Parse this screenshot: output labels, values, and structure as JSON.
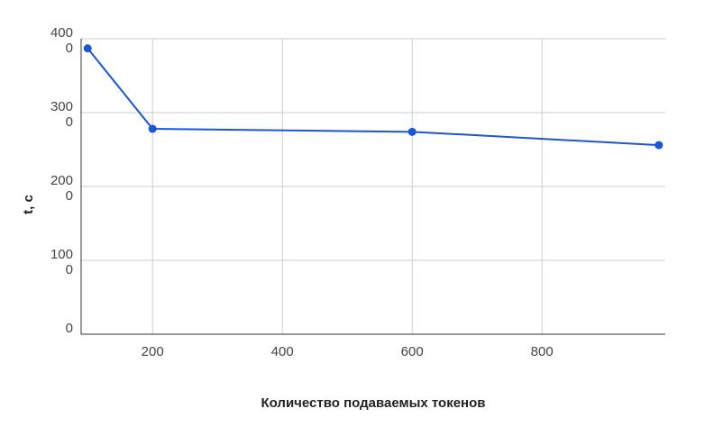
{
  "chart_data": {
    "type": "line",
    "title": "",
    "xlabel": "Количество подаваемых токенов",
    "ylabel": "t, c",
    "x": [
      100,
      200,
      600,
      980
    ],
    "series": [
      {
        "values": [
          3870,
          2780,
          2740,
          2560
        ],
        "color": "#1a56d6"
      }
    ],
    "xlim": [
      90,
      990
    ],
    "ylim": [
      0,
      4000
    ],
    "x_ticks": [
      200,
      400,
      600,
      800
    ],
    "y_ticks": [
      {
        "value": 0,
        "label": [
          "0"
        ]
      },
      {
        "value": 1000,
        "label": [
          "100",
          "0"
        ]
      },
      {
        "value": 2000,
        "label": [
          "200",
          "0"
        ]
      },
      {
        "value": 3000,
        "label": [
          "300",
          "0"
        ]
      },
      {
        "value": 4000,
        "label": [
          "400",
          "0"
        ]
      }
    ],
    "grid": true,
    "legend": "none"
  }
}
